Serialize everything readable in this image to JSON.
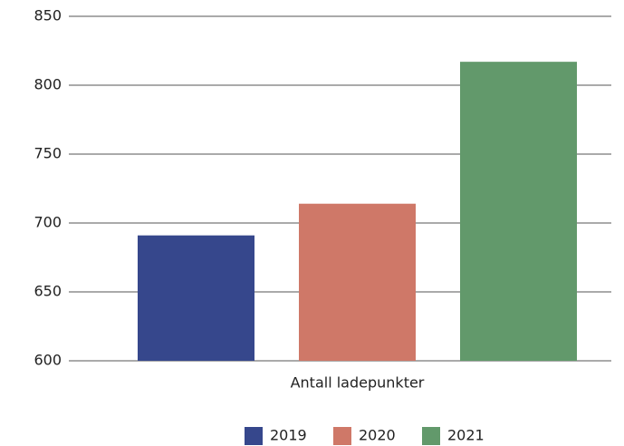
{
  "chart_data": {
    "type": "bar",
    "categories": [
      "Antall ladepunkter"
    ],
    "series": [
      {
        "name": "2019",
        "color": "#36478c",
        "values": [
          691
        ]
      },
      {
        "name": "2020",
        "color": "#cf7868",
        "values": [
          714
        ]
      },
      {
        "name": "2021",
        "color": "#62996b",
        "values": [
          817
        ]
      }
    ],
    "ylim": [
      600,
      850
    ],
    "yticks": [
      600,
      650,
      700,
      750,
      800,
      850
    ],
    "grid": true,
    "legend": "bottom"
  }
}
